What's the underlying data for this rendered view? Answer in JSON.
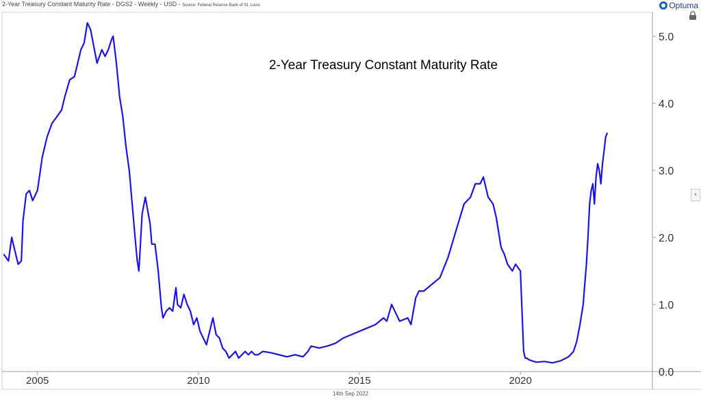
{
  "header": {
    "title": "2-Year Treasury Constant Maturity Rate - DGS2 - Weekly - USD -",
    "source": "Source: Federal Reserve Bank of St. Louis"
  },
  "brand": {
    "name": "Optuma"
  },
  "footer": {
    "date": "14th Sep 2022"
  },
  "colors": {
    "line": "#1a12e8",
    "axis": "#9a9a9a",
    "text": "#333333"
  },
  "chart_data": {
    "type": "line",
    "title": "2-Year Treasury Constant Maturity Rate",
    "xlabel": "",
    "ylabel": "",
    "xlim": [
      2003.9,
      2024.1
    ],
    "ylim": [
      0.0,
      5.3
    ],
    "x_ticks": [
      2005,
      2010,
      2015,
      2020
    ],
    "y_ticks": [
      0.0,
      1.0,
      2.0,
      3.0,
      4.0,
      5.0
    ],
    "y_tick_labels": [
      "0.0",
      "1.0",
      "2.0",
      "3.0",
      "4.0",
      "5.0"
    ],
    "grid": false,
    "series": [
      {
        "name": "DGS2",
        "x": [
          2003.95,
          2004.1,
          2004.2,
          2004.3,
          2004.4,
          2004.5,
          2004.55,
          2004.65,
          2004.75,
          2004.85,
          2005.0,
          2005.15,
          2005.3,
          2005.45,
          2005.6,
          2005.75,
          2005.85,
          2006.0,
          2006.15,
          2006.25,
          2006.35,
          2006.45,
          2006.55,
          2006.65,
          2006.75,
          2006.85,
          2007.0,
          2007.1,
          2007.2,
          2007.3,
          2007.35,
          2007.45,
          2007.55,
          2007.65,
          2007.75,
          2007.85,
          2007.95,
          2008.05,
          2008.1,
          2008.15,
          2008.25,
          2008.35,
          2008.5,
          2008.55,
          2008.65,
          2008.75,
          2008.85,
          2008.9,
          2009.0,
          2009.1,
          2009.2,
          2009.3,
          2009.35,
          2009.45,
          2009.55,
          2009.65,
          2009.75,
          2009.85,
          2009.95,
          2010.05,
          2010.15,
          2010.25,
          2010.35,
          2010.45,
          2010.55,
          2010.65,
          2010.75,
          2010.85,
          2010.95,
          2011.05,
          2011.15,
          2011.25,
          2011.35,
          2011.45,
          2011.55,
          2011.65,
          2011.75,
          2011.85,
          2012.0,
          2012.25,
          2012.5,
          2012.75,
          2013.0,
          2013.25,
          2013.4,
          2013.5,
          2013.75,
          2014.0,
          2014.25,
          2014.5,
          2014.75,
          2015.0,
          2015.25,
          2015.5,
          2015.75,
          2015.85,
          2016.0,
          2016.1,
          2016.25,
          2016.5,
          2016.6,
          2016.75,
          2016.85,
          2017.0,
          2017.25,
          2017.5,
          2017.75,
          2018.0,
          2018.25,
          2018.45,
          2018.6,
          2018.75,
          2018.85,
          2019.0,
          2019.15,
          2019.25,
          2019.4,
          2019.5,
          2019.6,
          2019.75,
          2019.85,
          2020.0,
          2020.1,
          2020.15,
          2020.2,
          2020.25,
          2020.35,
          2020.5,
          2020.75,
          2021.0,
          2021.25,
          2021.5,
          2021.65,
          2021.75,
          2021.85,
          2021.95,
          2022.0,
          2022.05,
          2022.1,
          2022.15,
          2022.2,
          2022.25,
          2022.3,
          2022.35,
          2022.4,
          2022.45,
          2022.5,
          2022.55,
          2022.6,
          2022.65,
          2022.7
        ],
        "values": [
          1.75,
          1.65,
          2.0,
          1.8,
          1.6,
          1.65,
          2.25,
          2.65,
          2.7,
          2.55,
          2.7,
          3.2,
          3.5,
          3.7,
          3.8,
          3.9,
          4.1,
          4.35,
          4.4,
          4.6,
          4.8,
          4.9,
          5.2,
          5.1,
          4.85,
          4.6,
          4.8,
          4.7,
          4.8,
          4.95,
          5.0,
          4.6,
          4.1,
          3.8,
          3.35,
          3.0,
          2.45,
          1.9,
          1.65,
          1.5,
          2.35,
          2.6,
          2.2,
          1.9,
          1.9,
          1.5,
          0.95,
          0.8,
          0.9,
          0.95,
          0.9,
          1.25,
          1.0,
          0.95,
          1.15,
          1.0,
          0.9,
          0.7,
          0.8,
          0.6,
          0.5,
          0.4,
          0.6,
          0.8,
          0.55,
          0.5,
          0.35,
          0.3,
          0.2,
          0.25,
          0.3,
          0.2,
          0.25,
          0.3,
          0.25,
          0.3,
          0.25,
          0.25,
          0.3,
          0.28,
          0.25,
          0.22,
          0.25,
          0.22,
          0.3,
          0.38,
          0.35,
          0.38,
          0.42,
          0.5,
          0.55,
          0.6,
          0.65,
          0.7,
          0.8,
          0.75,
          1.0,
          0.9,
          0.75,
          0.8,
          0.7,
          1.1,
          1.2,
          1.2,
          1.3,
          1.4,
          1.7,
          2.1,
          2.5,
          2.6,
          2.8,
          2.8,
          2.9,
          2.6,
          2.5,
          2.3,
          1.85,
          1.75,
          1.6,
          1.5,
          1.6,
          1.5,
          0.3,
          0.2,
          0.2,
          0.18,
          0.16,
          0.14,
          0.15,
          0.13,
          0.16,
          0.22,
          0.3,
          0.45,
          0.7,
          1.0,
          1.3,
          1.6,
          2.0,
          2.5,
          2.7,
          2.8,
          2.5,
          2.9,
          3.1,
          3.0,
          2.8,
          3.1,
          3.3,
          3.5,
          3.56
        ]
      }
    ]
  }
}
